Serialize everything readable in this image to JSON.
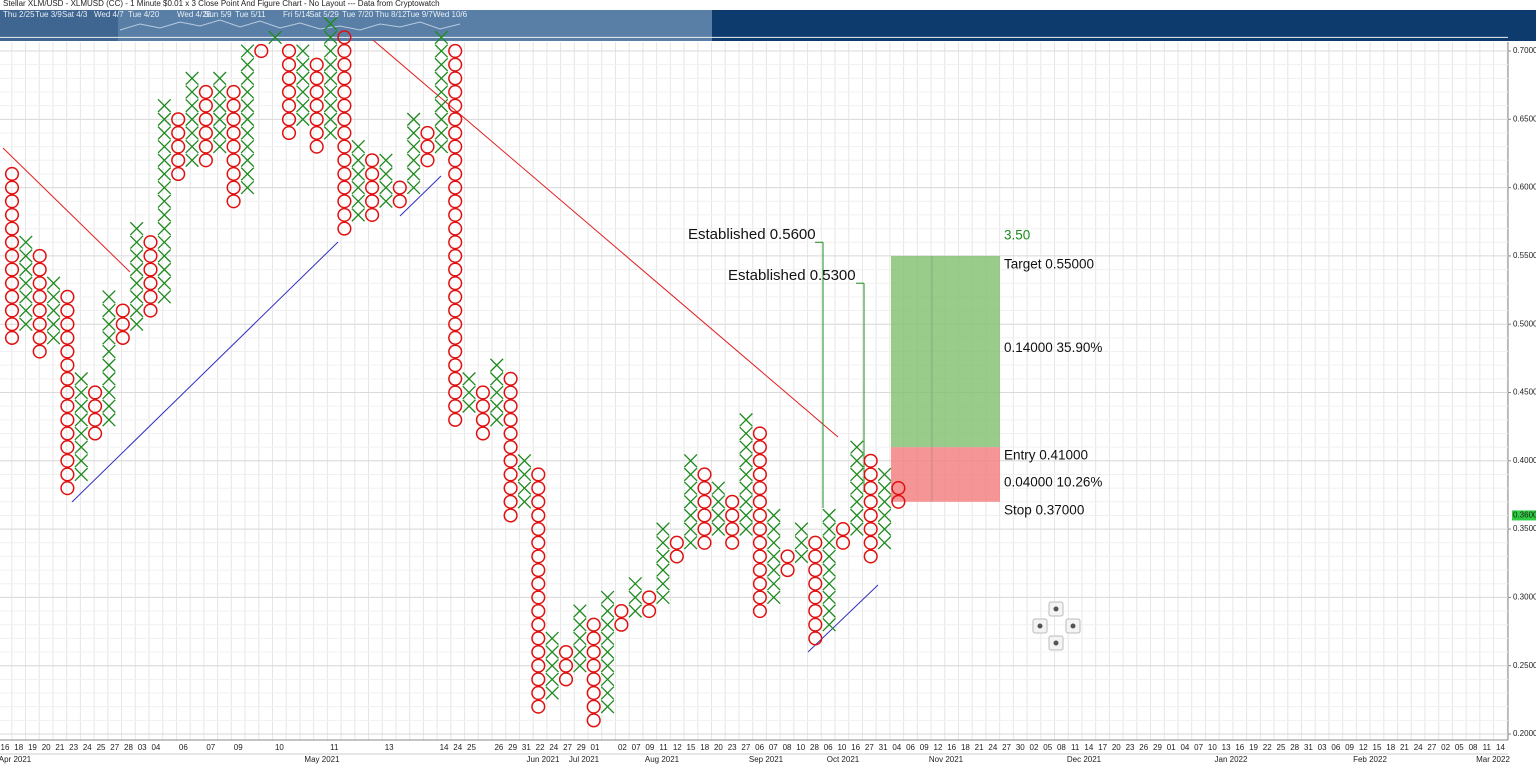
{
  "chart_data": {
    "type": "point-and-figure",
    "title": "Stellar XLM/USD - XLMUSD (CC) - 1 Minute $0.01 x 3 Close Point And Figure Chart - No Layout --- Data from Cryptowatch",
    "navigator_dates": [
      "Thu 2/25",
      "Tue 3/9",
      "Sat 4/3",
      "Wed 4/7",
      "Tue 4/20",
      "Wed 4/28",
      "Sun 5/9",
      "Tue 5/11",
      "Fri 5/14",
      "Sat 5/29",
      "Tue 7/20",
      "Thu 8/12",
      "Tue 9/7",
      "Wed 10/6"
    ],
    "colors": {
      "X": "#1e8a1e",
      "O": "#e01010"
    },
    "columns": [
      {
        "type": "O",
        "high": 0.61,
        "low": 0.49
      },
      {
        "type": "X",
        "low": 0.5,
        "high": 0.56
      },
      {
        "type": "O",
        "high": 0.55,
        "low": 0.48
      },
      {
        "type": "X",
        "low": 0.49,
        "high": 0.53
      },
      {
        "type": "O",
        "high": 0.52,
        "low": 0.38
      },
      {
        "type": "X",
        "low": 0.39,
        "high": 0.46
      },
      {
        "type": "O",
        "high": 0.45,
        "low": 0.42
      },
      {
        "type": "X",
        "low": 0.43,
        "high": 0.52
      },
      {
        "type": "O",
        "high": 0.51,
        "low": 0.49
      },
      {
        "type": "X",
        "low": 0.5,
        "high": 0.57
      },
      {
        "type": "O",
        "high": 0.56,
        "low": 0.51
      },
      {
        "type": "X",
        "low": 0.52,
        "high": 0.66
      },
      {
        "type": "O",
        "high": 0.65,
        "low": 0.61
      },
      {
        "type": "X",
        "low": 0.62,
        "high": 0.68
      },
      {
        "type": "O",
        "high": 0.67,
        "low": 0.62
      },
      {
        "type": "X",
        "low": 0.63,
        "high": 0.68
      },
      {
        "type": "O",
        "high": 0.67,
        "low": 0.59
      },
      {
        "type": "X",
        "low": 0.6,
        "high": 0.7
      },
      {
        "type": "O",
        "high": 0.7,
        "low": 0.7
      },
      {
        "type": "X",
        "low": 0.71,
        "high": 0.71
      },
      {
        "type": "O",
        "high": 0.7,
        "low": 0.64
      },
      {
        "type": "X",
        "low": 0.65,
        "high": 0.7
      },
      {
        "type": "O",
        "high": 0.69,
        "low": 0.63
      },
      {
        "type": "X",
        "low": 0.64,
        "high": 0.72
      },
      {
        "type": "O",
        "high": 0.71,
        "low": 0.57
      },
      {
        "type": "X",
        "low": 0.58,
        "high": 0.63
      },
      {
        "type": "O",
        "high": 0.62,
        "low": 0.58
      },
      {
        "type": "X",
        "low": 0.59,
        "high": 0.62
      },
      {
        "type": "O",
        "high": 0.6,
        "low": 0.59
      },
      {
        "type": "X",
        "low": 0.6,
        "high": 0.65
      },
      {
        "type": "O",
        "high": 0.64,
        "low": 0.62
      },
      {
        "type": "X",
        "low": 0.63,
        "high": 0.71
      },
      {
        "type": "O",
        "high": 0.7,
        "low": 0.43
      },
      {
        "type": "X",
        "low": 0.44,
        "high": 0.46
      },
      {
        "type": "O",
        "high": 0.45,
        "low": 0.42
      },
      {
        "type": "X",
        "low": 0.43,
        "high": 0.47
      },
      {
        "type": "O",
        "high": 0.46,
        "low": 0.36
      },
      {
        "type": "X",
        "low": 0.37,
        "high": 0.4
      },
      {
        "type": "O",
        "high": 0.39,
        "low": 0.22
      },
      {
        "type": "X",
        "low": 0.23,
        "high": 0.27
      },
      {
        "type": "O",
        "high": 0.26,
        "low": 0.24
      },
      {
        "type": "X",
        "low": 0.25,
        "high": 0.29
      },
      {
        "type": "O",
        "high": 0.28,
        "low": 0.21
      },
      {
        "type": "X",
        "low": 0.22,
        "high": 0.3
      },
      {
        "type": "O",
        "high": 0.29,
        "low": 0.28
      },
      {
        "type": "X",
        "low": 0.29,
        "high": 0.31
      },
      {
        "type": "O",
        "high": 0.3,
        "low": 0.29
      },
      {
        "type": "X",
        "low": 0.3,
        "high": 0.35
      },
      {
        "type": "O",
        "high": 0.34,
        "low": 0.33
      },
      {
        "type": "X",
        "low": 0.34,
        "high": 0.4
      },
      {
        "type": "O",
        "high": 0.39,
        "low": 0.34
      },
      {
        "type": "X",
        "low": 0.35,
        "high": 0.38
      },
      {
        "type": "O",
        "high": 0.37,
        "low": 0.34
      },
      {
        "type": "X",
        "low": 0.35,
        "high": 0.43
      },
      {
        "type": "O",
        "high": 0.42,
        "low": 0.29
      },
      {
        "type": "X",
        "low": 0.3,
        "high": 0.36
      },
      {
        "type": "O",
        "high": 0.33,
        "low": 0.32
      },
      {
        "type": "X",
        "low": 0.33,
        "high": 0.35
      },
      {
        "type": "O",
        "high": 0.34,
        "low": 0.27
      },
      {
        "type": "X",
        "low": 0.28,
        "high": 0.36
      },
      {
        "type": "O",
        "high": 0.35,
        "low": 0.34
      },
      {
        "type": "X",
        "low": 0.35,
        "high": 0.41
      },
      {
        "type": "O",
        "high": 0.4,
        "low": 0.33
      },
      {
        "type": "X",
        "low": 0.34,
        "high": 0.39
      },
      {
        "type": "O",
        "high": 0.38,
        "low": 0.37
      }
    ],
    "categories": [
      "16",
      "18",
      "19",
      "20",
      "21",
      "23",
      "24",
      "25",
      "27",
      "28",
      "03",
      "04",
      null,
      "06",
      null,
      "07",
      null,
      "09",
      null,
      null,
      "10",
      null,
      null,
      null,
      "11",
      null,
      null,
      null,
      "13",
      null,
      null,
      null,
      "14",
      "24",
      "25",
      null,
      "26",
      "29",
      "31",
      "22",
      "24",
      "27",
      "29",
      "01",
      null,
      "02",
      "07",
      "09",
      "11",
      "12",
      "15",
      "18",
      "20",
      "23",
      "27",
      "06",
      "07",
      "08",
      "10",
      "28",
      "06",
      "10",
      "16",
      "27",
      "31",
      "04",
      "06",
      "09",
      "12",
      "16",
      "18",
      "21",
      "24",
      "27",
      "30",
      "02",
      "05",
      "08",
      "11",
      "14",
      "17",
      "20",
      "23",
      "26",
      "29",
      "01",
      "04",
      "07",
      "10",
      "13",
      "16",
      "19",
      "22",
      "25",
      "28",
      "31",
      "03",
      "06",
      "09",
      "12",
      "15",
      "18",
      "21",
      "24",
      "27",
      "02",
      "05",
      "08",
      "11",
      "14"
    ],
    "months": [
      "Apr 2021",
      "May 2021",
      "Jun 2021",
      "Jul 2021",
      "Aug 2021",
      "Sep 2021",
      "Oct 2021",
      "Nov 2021",
      "Dec 2021",
      "Jan 2022",
      "Feb 2022",
      "Mar 2022"
    ],
    "ylim": [
      0.1956,
      0.7066
    ],
    "yticks": [
      {
        "value": 0.2,
        "label": "0.2000"
      },
      {
        "value": 0.25,
        "label": "0.2500"
      },
      {
        "value": 0.3,
        "label": "0.3000"
      },
      {
        "value": 0.35,
        "label": "0.3500"
      },
      {
        "value": 0.4,
        "label": "0.4000"
      },
      {
        "value": 0.45,
        "label": "0.4500"
      },
      {
        "value": 0.5,
        "label": "0.5000"
      },
      {
        "value": 0.55,
        "label": "0.5500"
      },
      {
        "value": 0.6,
        "label": "0.6000"
      },
      {
        "value": 0.65,
        "label": "0.6500"
      },
      {
        "value": 0.7,
        "label": "0.7000"
      }
    ],
    "last_price": {
      "value": 0.36,
      "label": "0.3600"
    },
    "trade": {
      "target": 0.55,
      "entry": 0.41,
      "stop": 0.37,
      "ratio_label": "3.50",
      "target_label": "Target  0.55000",
      "reward_label": "0.14000   35.90%",
      "entry_label": "Entry  0.41000",
      "risk_label": "0.04000   10.26%",
      "stop_label": "Stop  0.37000"
    },
    "established": [
      {
        "label": "Established 0.5600",
        "value": 0.56
      },
      {
        "label": "Established 0.5300",
        "value": 0.53
      }
    ]
  }
}
